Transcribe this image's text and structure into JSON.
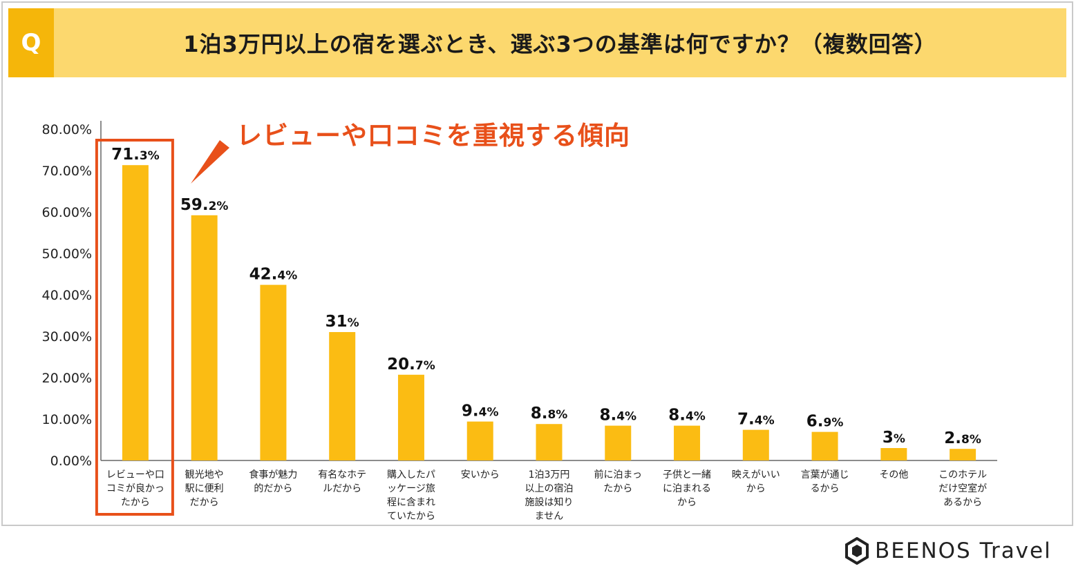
{
  "header": {
    "badge": "Q",
    "title": "1泊3万円以上の宿を選ぶとき、選ぶ3つの基準は何ですか？（複数回答）"
  },
  "annotation": {
    "text": "レビューや口コミを重視する傾向",
    "color": "#e8501a"
  },
  "logo": {
    "icon": "hexagon-b-icon",
    "text": "BEENOS Travel"
  },
  "colors": {
    "bar": "#fbbc13",
    "header_bg": "#fcd86e",
    "badge_bg": "#f5b60a",
    "highlight": "#e8501a",
    "axis": "#666666"
  },
  "chart_data": {
    "type": "bar",
    "title": "1泊3万円以上の宿を選ぶとき、選ぶ3つの基準は何ですか？（複数回答）",
    "xlabel": "",
    "ylabel": "",
    "ylim": [
      0,
      80
    ],
    "yticks": [
      "0.00%",
      "10.00%",
      "20.00%",
      "30.00%",
      "40.00%",
      "50.00%",
      "60.00%",
      "70.00%",
      "80.00%"
    ],
    "grid": false,
    "highlighted_index": 0,
    "categories": [
      [
        "レビューや口",
        "コミが良かっ",
        "たから"
      ],
      [
        "観光地や",
        "駅に便利",
        "だから"
      ],
      [
        "食事が魅力",
        "的だから"
      ],
      [
        "有名なホテ",
        "ルだから"
      ],
      [
        "購入したパ",
        "ッケージ旅",
        "程に含まれ",
        "ていたから"
      ],
      [
        "安いから"
      ],
      [
        "1泊3万円",
        "以上の宿泊",
        "施設は知り",
        "ません"
      ],
      [
        "前に泊まっ",
        "たから"
      ],
      [
        "子供と一緒",
        "に泊まれる",
        "から"
      ],
      [
        "映えがいい",
        "から"
      ],
      [
        "言葉が通じ",
        "るから"
      ],
      [
        "その他"
      ],
      [
        "このホテル",
        "だけ空室が",
        "あるから"
      ]
    ],
    "values": [
      71.3,
      59.2,
      42.4,
      31,
      20.7,
      9.4,
      8.8,
      8.4,
      8.4,
      7.4,
      6.9,
      3,
      2.8
    ],
    "value_labels": [
      {
        "main": "71.",
        "sub": "3%"
      },
      {
        "main": "59.",
        "sub": "2%"
      },
      {
        "main": "42.",
        "sub": "4%"
      },
      {
        "main": "31",
        "sub": "%"
      },
      {
        "main": "20.",
        "sub": "7%"
      },
      {
        "main": "9.",
        "sub": "4%"
      },
      {
        "main": "8.",
        "sub": "8%"
      },
      {
        "main": "8.",
        "sub": "4%"
      },
      {
        "main": "8.",
        "sub": "4%"
      },
      {
        "main": "7.",
        "sub": "4%"
      },
      {
        "main": "6.",
        "sub": "9%"
      },
      {
        "main": "3",
        "sub": "%"
      },
      {
        "main": "2.",
        "sub": "8%"
      }
    ]
  }
}
